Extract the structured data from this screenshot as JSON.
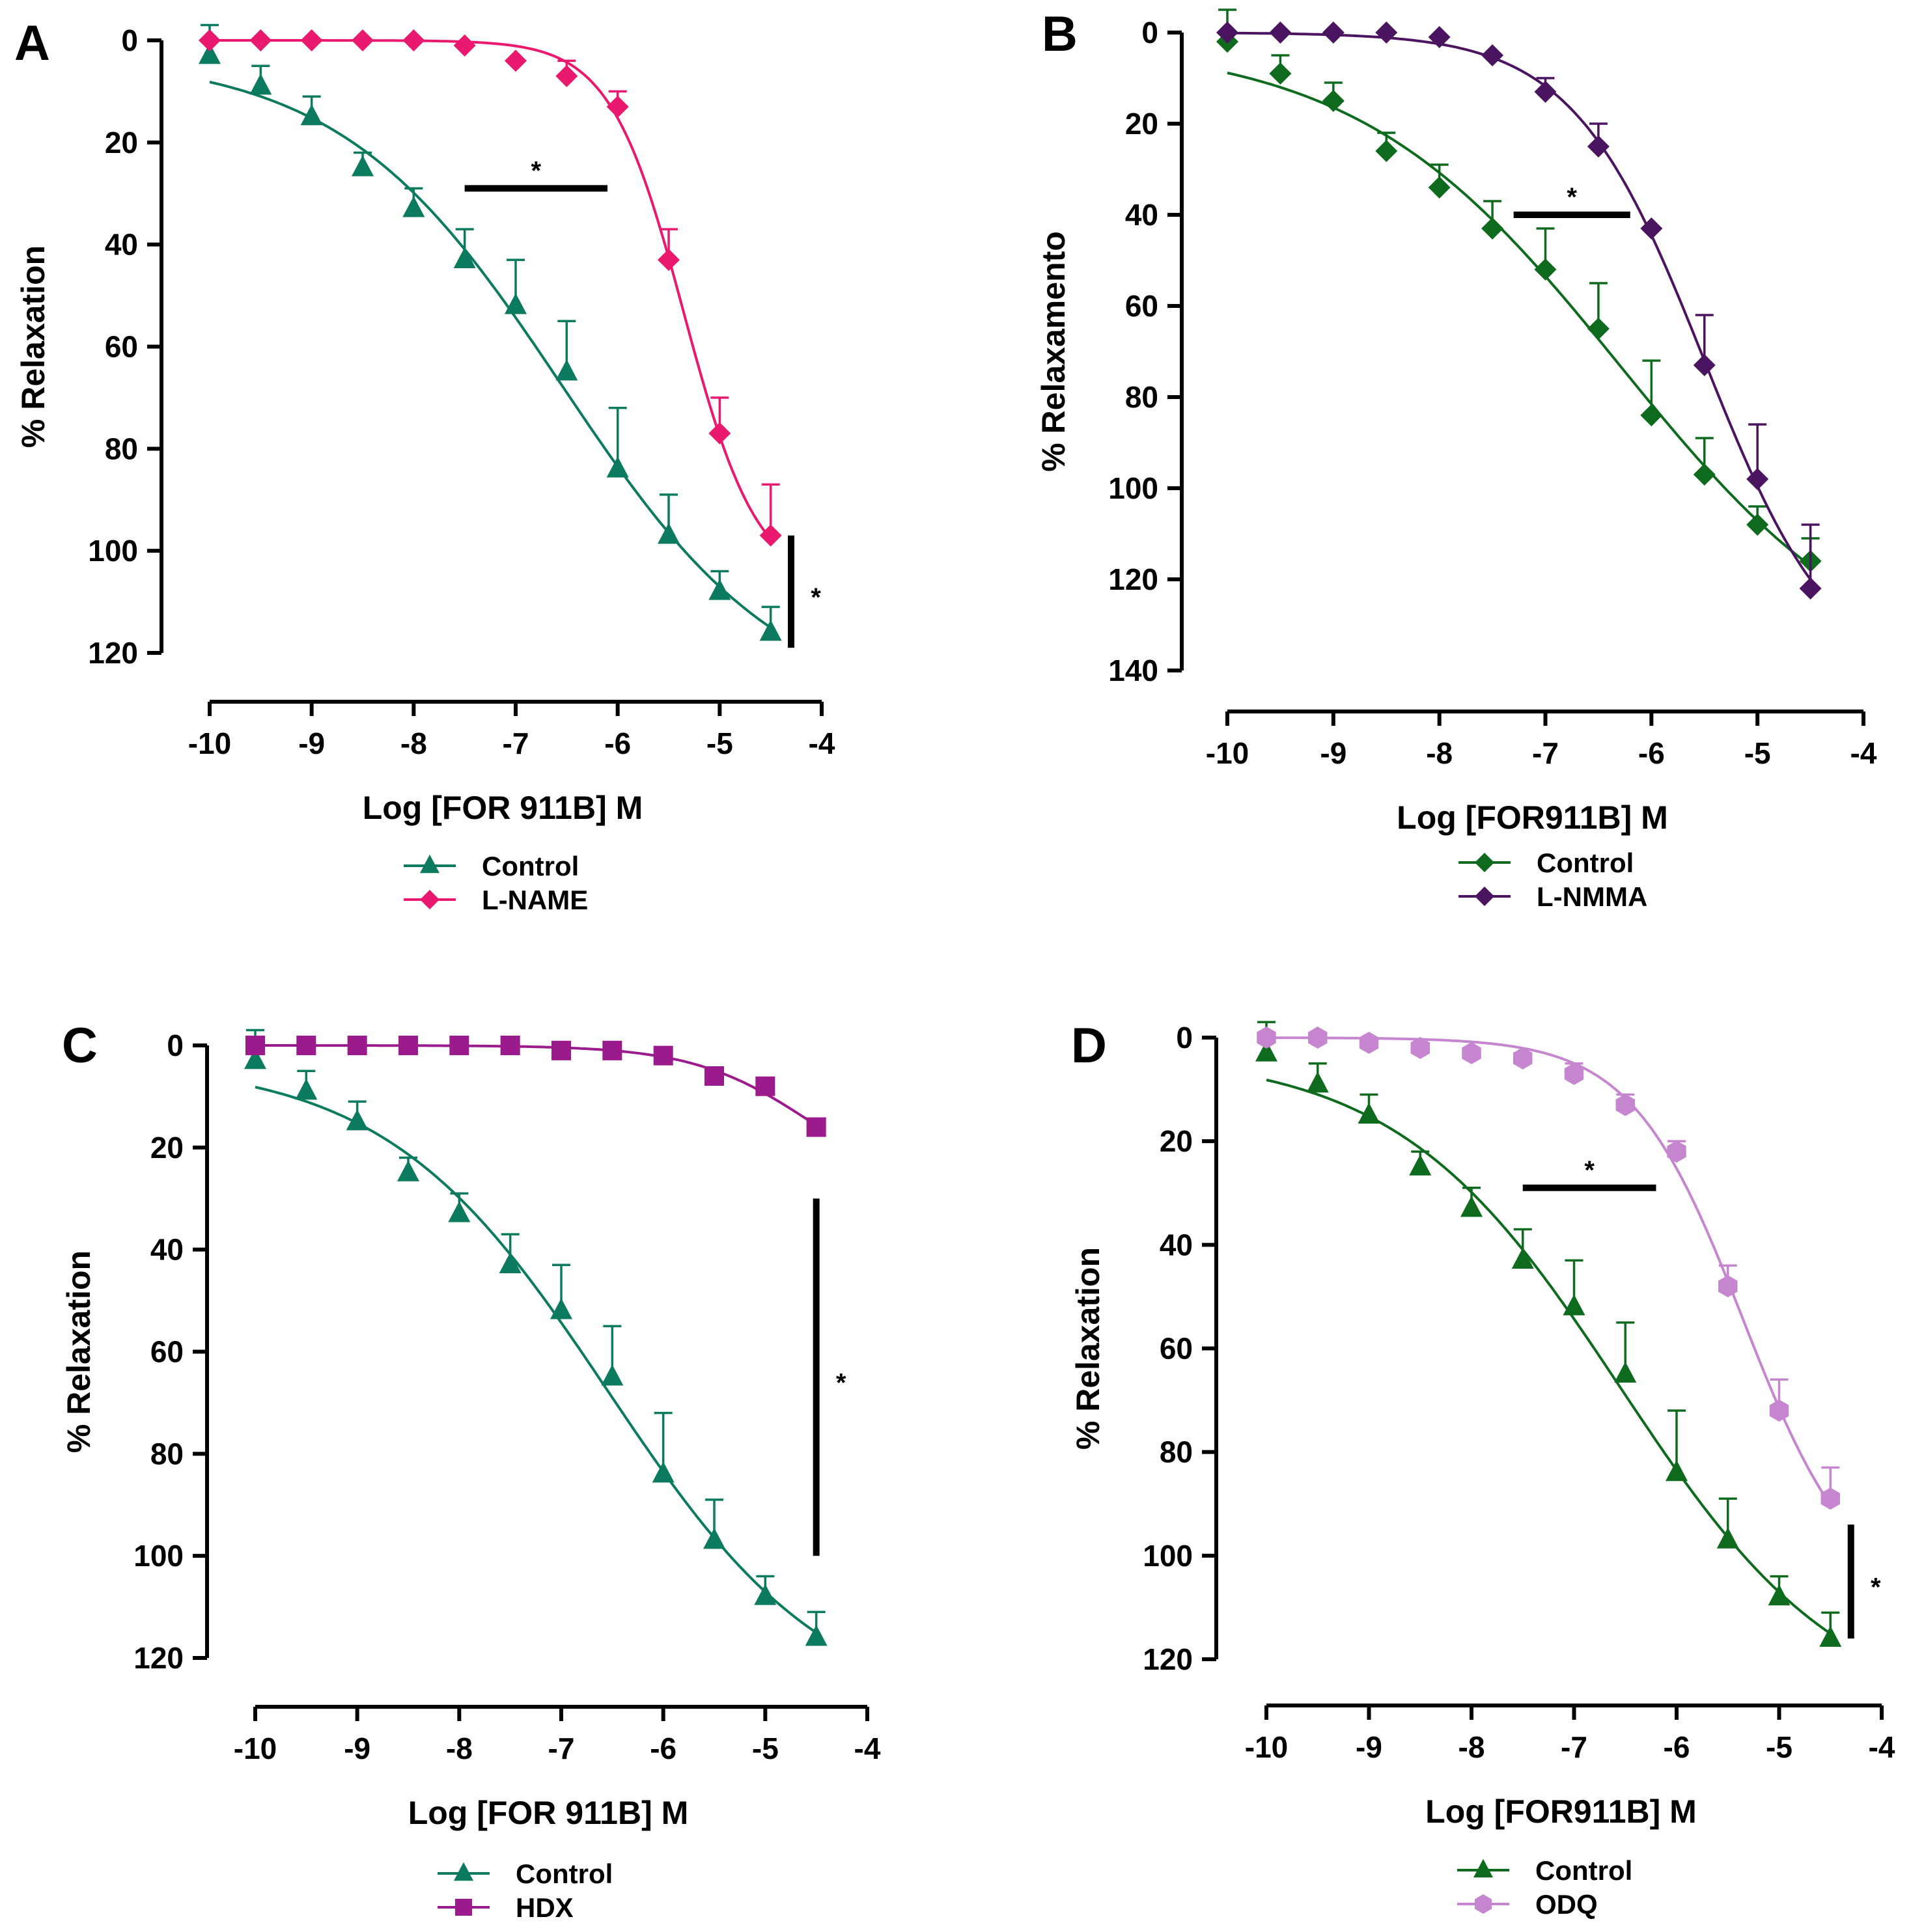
{
  "chart_data": [
    {
      "type": "line",
      "panel": "A",
      "xlabel": "Log [FOR 911B] M",
      "ylabel": "% Relaxation",
      "xlim": [
        -10,
        -4
      ],
      "ylim": [
        0,
        120
      ],
      "y_inverted": true,
      "xticks": [
        -10,
        -9,
        -8,
        -7,
        -6,
        -5,
        -4
      ],
      "yticks": [
        0,
        20,
        40,
        60,
        80,
        100,
        120
      ],
      "series": [
        {
          "name": "Control",
          "color": "#0b7a5e",
          "marker": "triangle",
          "x": [
            -10,
            -9.5,
            -9,
            -8.5,
            -8,
            -7.5,
            -7,
            -6.5,
            -6,
            -5.5,
            -5,
            -4.5
          ],
          "values": [
            3,
            9,
            15,
            25,
            33,
            43,
            52,
            65,
            84,
            97,
            108,
            116
          ],
          "sem": [
            6,
            4,
            4,
            3,
            4,
            6,
            9,
            10,
            12,
            8,
            4,
            5
          ]
        },
        {
          "name": "L-NAME",
          "color": "#e8196e",
          "marker": "diamond",
          "x": [
            -10,
            -9.5,
            -9,
            -8.5,
            -8,
            -7.5,
            -7,
            -6.5,
            -6,
            -5.5,
            -5,
            -4.5
          ],
          "values": [
            0,
            0,
            0,
            0,
            0,
            1,
            4,
            7,
            13,
            43,
            77,
            97
          ],
          "sem": [
            0,
            0,
            0,
            0,
            0,
            0,
            0,
            3,
            3,
            6,
            7,
            10
          ]
        }
      ],
      "annotations": [
        {
          "text": "*",
          "type": "bracket-horizontal",
          "x_range": [
            -7.5,
            -6.1
          ],
          "y": 29
        },
        {
          "text": "*",
          "type": "bracket-vertical",
          "x": -4.3,
          "y_range": [
            97,
            119
          ]
        }
      ]
    },
    {
      "type": "line",
      "panel": "B",
      "xlabel": "Log [FOR911B] M",
      "ylabel": "% Relaxamento",
      "xlim": [
        -10,
        -4
      ],
      "ylim": [
        0,
        140
      ],
      "y_inverted": true,
      "xticks": [
        -10,
        -9,
        -8,
        -7,
        -6,
        -5,
        -4
      ],
      "yticks": [
        0,
        20,
        40,
        60,
        80,
        100,
        120,
        140
      ],
      "series": [
        {
          "name": "Control",
          "color": "#0e6b1e",
          "marker": "diamond",
          "x": [
            -10,
            -9.5,
            -9,
            -8.5,
            -8,
            -7.5,
            -7,
            -6.5,
            -6,
            -5.5,
            -5,
            -4.5
          ],
          "values": [
            2,
            9,
            15,
            26,
            34,
            43,
            52,
            65,
            84,
            97,
            108,
            116
          ],
          "sem": [
            7,
            4,
            4,
            4,
            5,
            6,
            9,
            10,
            12,
            8,
            4,
            5
          ]
        },
        {
          "name": "L-NMMA",
          "color": "#4b1460",
          "marker": "diamond",
          "x": [
            -10,
            -9.5,
            -9,
            -8.5,
            -8,
            -7.5,
            -7,
            -6.5,
            -6,
            -5.5,
            -5,
            -4.5
          ],
          "values": [
            0,
            0,
            0,
            0,
            1,
            5,
            13,
            25,
            43,
            73,
            98,
            122
          ],
          "sem": [
            0,
            0,
            0,
            0,
            0,
            0,
            3,
            5,
            0,
            11,
            12,
            14
          ]
        }
      ],
      "annotations": [
        {
          "text": "*",
          "type": "bracket-horizontal",
          "x_range": [
            -7.3,
            -6.2
          ],
          "y": 40
        }
      ]
    },
    {
      "type": "line",
      "panel": "C",
      "xlabel": "Log [FOR 911B] M",
      "ylabel": "% Relaxation",
      "xlim": [
        -10,
        -4
      ],
      "ylim": [
        0,
        120
      ],
      "y_inverted": true,
      "xticks": [
        -10,
        -9,
        -8,
        -7,
        -6,
        -5,
        -4
      ],
      "yticks": [
        0,
        20,
        40,
        60,
        80,
        100,
        120
      ],
      "series": [
        {
          "name": "Control",
          "color": "#0b7a5e",
          "marker": "triangle",
          "x": [
            -10,
            -9.5,
            -9,
            -8.5,
            -8,
            -7.5,
            -7,
            -6.5,
            -6,
            -5.5,
            -5,
            -4.5
          ],
          "values": [
            3,
            9,
            15,
            25,
            33,
            43,
            52,
            65,
            84,
            97,
            108,
            116
          ],
          "sem": [
            6,
            4,
            4,
            3,
            4,
            6,
            9,
            10,
            12,
            8,
            4,
            5
          ]
        },
        {
          "name": "HDX",
          "color": "#9b1a8c",
          "marker": "square",
          "x": [
            -10,
            -9.5,
            -9,
            -8.5,
            -8,
            -7.5,
            -7,
            -6.5,
            -6,
            -5.5,
            -5,
            -4.5
          ],
          "values": [
            0,
            0,
            0,
            0,
            0,
            0,
            1,
            1,
            2,
            6,
            8,
            16
          ],
          "sem": [
            0,
            0,
            0,
            0,
            0,
            0,
            0,
            0,
            0,
            0,
            0,
            0
          ]
        }
      ],
      "annotations": [
        {
          "text": "*",
          "type": "bracket-vertical",
          "x": -4.5,
          "y_range": [
            30,
            100
          ]
        }
      ]
    },
    {
      "type": "line",
      "panel": "D",
      "xlabel": "Log [FOR911B] M",
      "ylabel": "% Relaxation",
      "xlim": [
        -10,
        -4
      ],
      "ylim": [
        0,
        120
      ],
      "y_inverted": true,
      "xticks": [
        -10,
        -9,
        -8,
        -7,
        -6,
        -5,
        -4
      ],
      "yticks": [
        0,
        20,
        40,
        60,
        80,
        100,
        120
      ],
      "series": [
        {
          "name": "Control",
          "color": "#0e6b1e",
          "marker": "triangle",
          "x": [
            -10,
            -9.5,
            -9,
            -8.5,
            -8,
            -7.5,
            -7,
            -6.5,
            -6,
            -5.5,
            -5,
            -4.5
          ],
          "values": [
            3,
            9,
            15,
            25,
            33,
            43,
            52,
            65,
            84,
            97,
            108,
            116
          ],
          "sem": [
            6,
            4,
            4,
            3,
            4,
            6,
            9,
            10,
            12,
            8,
            4,
            5
          ]
        },
        {
          "name": "ODQ",
          "color": "#c585cf",
          "marker": "hexagon",
          "x": [
            -10,
            -9.5,
            -9,
            -8.5,
            -8,
            -7.5,
            -7,
            -6.5,
            -6,
            -5.5,
            -5,
            -4.5
          ],
          "values": [
            0,
            0,
            1,
            2,
            3,
            4,
            7,
            13,
            22,
            48,
            72,
            89
          ],
          "sem": [
            0,
            0,
            0,
            0,
            0,
            1,
            2,
            2,
            2,
            4,
            6,
            6
          ]
        }
      ],
      "annotations": [
        {
          "text": "*",
          "type": "bracket-horizontal",
          "x_range": [
            -7.5,
            -6.2
          ],
          "y": 29
        },
        {
          "text": "*",
          "type": "bracket-vertical",
          "x": -4.3,
          "y_range": [
            94,
            116
          ]
        }
      ]
    }
  ]
}
